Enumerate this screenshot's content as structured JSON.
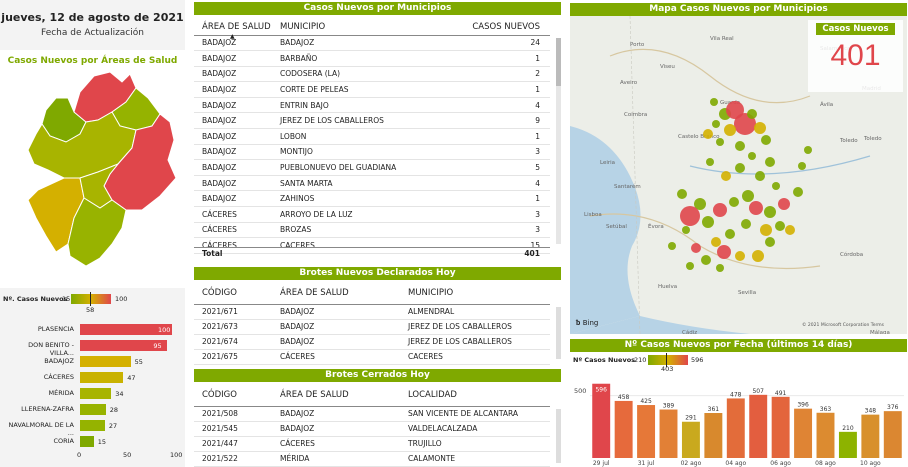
{
  "header": {
    "date": "jueves, 12 de agosto de 2021",
    "date_label": "Fecha de Actualización"
  },
  "areas_map": {
    "title": "Casos Nuevos por Áreas de Salud"
  },
  "legend": {
    "label": "Nº. Casos Nuevos",
    "min": "15",
    "max": "100",
    "mid": "58"
  },
  "area_bars": {
    "items": [
      {
        "label": "PLASENCIA",
        "value": 100,
        "color": "#e0464b"
      },
      {
        "label": "DON BENITO - VILLA...",
        "value": 95,
        "color": "#e0464b"
      },
      {
        "label": "BADAJOZ",
        "value": 55,
        "color": "#d4b000"
      },
      {
        "label": "CÁCERES",
        "value": 47,
        "color": "#c9b200"
      },
      {
        "label": "MÉRIDA",
        "value": 34,
        "color": "#a8b400"
      },
      {
        "label": "LLERENA-ZAFRA",
        "value": 28,
        "color": "#98b300"
      },
      {
        "label": "NAVALMORAL DE LA ...",
        "value": 27,
        "color": "#95b300"
      },
      {
        "label": "CORIA",
        "value": 15,
        "color": "#7fa900"
      }
    ],
    "axis": [
      "0",
      "50",
      "100"
    ]
  },
  "municipios": {
    "title": "Casos Nuevos por Municipios",
    "headers": [
      "ÁREA DE SALUD",
      "MUNICIPIO",
      "CASOS NUEVOS"
    ],
    "rows": [
      [
        "BADAJOZ",
        "BADAJOZ",
        "24"
      ],
      [
        "BADAJOZ",
        "BARBAÑO",
        "1"
      ],
      [
        "BADAJOZ",
        "CODOSERA (LA)",
        "2"
      ],
      [
        "BADAJOZ",
        "CORTE DE PELEAS",
        "1"
      ],
      [
        "BADAJOZ",
        "ENTRIN BAJO",
        "4"
      ],
      [
        "BADAJOZ",
        "JEREZ DE LOS CABALLEROS",
        "9"
      ],
      [
        "BADAJOZ",
        "LOBON",
        "1"
      ],
      [
        "BADAJOZ",
        "MONTIJO",
        "3"
      ],
      [
        "BADAJOZ",
        "PUEBLONUEVO DEL GUADIANA",
        "5"
      ],
      [
        "BADAJOZ",
        "SANTA MARTA",
        "4"
      ],
      [
        "BADAJOZ",
        "ZAHINOS",
        "1"
      ],
      [
        "CÁCERES",
        "ARROYO DE LA LUZ",
        "3"
      ],
      [
        "CÁCERES",
        "BROZAS",
        "3"
      ],
      [
        "CÁCERES",
        "CACERES",
        "15"
      ]
    ],
    "total_label": "Total",
    "total_value": "401"
  },
  "brotes_nuevos": {
    "title": "Brotes Nuevos Declarados Hoy",
    "headers": [
      "CÓDIGO",
      "ÁREA DE SALUD",
      "MUNICIPIO"
    ],
    "rows": [
      [
        "2021/671",
        "BADAJOZ",
        "ALMENDRAL"
      ],
      [
        "2021/673",
        "BADAJOZ",
        "JEREZ DE LOS CABALLEROS"
      ],
      [
        "2021/674",
        "BADAJOZ",
        "JEREZ DE LOS CABALLEROS"
      ],
      [
        "2021/675",
        "CÁCERES",
        "CACERES"
      ]
    ]
  },
  "brotes_cerrados": {
    "title": "Brotes Cerrados Hoy",
    "headers": [
      "CÓDIGO",
      "ÁREA DE SALUD",
      "LOCALIDAD"
    ],
    "rows": [
      [
        "2021/508",
        "BADAJOZ",
        "SAN VICENTE DE ALCANTARA"
      ],
      [
        "2021/545",
        "BADAJOZ",
        "VALDELACALZADA"
      ],
      [
        "2021/447",
        "CÁCERES",
        "TRUJILLO"
      ],
      [
        "2021/522",
        "MÉRIDA",
        "CALAMONTE"
      ]
    ]
  },
  "mapa": {
    "title": "Mapa Casos Nuevos por Municipios",
    "card_label": "Casos Nuevos",
    "card_value": "401",
    "bing": "Bing",
    "copyright": "© 2021 Microsoft Corporation Terms",
    "places": [
      "Porto",
      "Vila Real",
      "Viseu",
      "Aveiro",
      "Coimbra",
      "Leiria",
      "Castelo Branco",
      "Guarda",
      "Salamanca",
      "Ávila",
      "Madrid",
      "Toledo",
      "Santarém",
      "Lisboa",
      "Setúbal",
      "Évora",
      "Córdoba",
      "Sevilla",
      "Cádiz",
      "Málaga",
      "Huelva",
      "Toledo"
    ]
  },
  "chart_data": {
    "type": "bar",
    "title": "Nº Casos Nuevos por Fecha (últimos 14 días)",
    "legend_label": "Nº Casos Nuevos",
    "legend_min": "210",
    "legend_max": "596",
    "legend_mid": "403",
    "values": [
      596,
      458,
      425,
      389,
      291,
      361,
      478,
      507,
      491,
      396,
      363,
      210,
      348,
      376
    ],
    "colors": [
      "#e0464b",
      "#e66a3c",
      "#e67838",
      "#e28036",
      "#c9a91e",
      "#d8892d",
      "#e36c3a",
      "#e35e3f",
      "#e3653c",
      "#df8434",
      "#dc8b30",
      "#8db300",
      "#d8902c",
      "#db8731"
    ],
    "xticks": [
      "29 jul",
      "31 jul",
      "02 ago",
      "04 ago",
      "06 ago",
      "08 ago",
      "10 ago"
    ],
    "ytick": "500",
    "ylim": [
      0,
      650
    ]
  }
}
